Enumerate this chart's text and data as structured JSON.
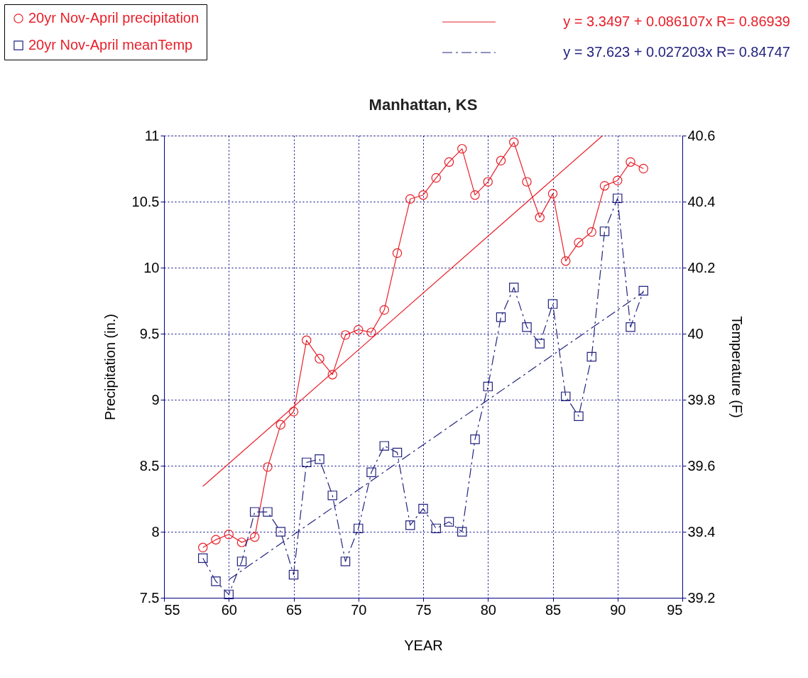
{
  "chart_data": {
    "type": "line",
    "title": "Manhattan, KS",
    "xlabel": "YEAR",
    "ylabel": "Precipitation (in.)",
    "y2label": "Temperature (F)",
    "x": [
      58,
      59,
      60,
      61,
      62,
      63,
      64,
      65,
      66,
      67,
      68,
      69,
      70,
      71,
      72,
      73,
      74,
      75,
      76,
      77,
      78,
      79,
      80,
      81,
      82,
      83,
      84,
      85,
      86,
      87,
      88,
      89,
      90,
      91,
      92
    ],
    "series": [
      {
        "name": "20yr Nov-April precipitation",
        "color": "#e8202a",
        "marker": "circle",
        "line_style": "solid",
        "values": [
          7.88,
          7.94,
          7.98,
          7.92,
          7.96,
          8.49,
          8.81,
          8.91,
          9.45,
          9.31,
          9.19,
          9.49,
          9.53,
          9.51,
          9.68,
          10.11,
          10.52,
          10.55,
          10.68,
          10.8,
          10.9,
          10.55,
          10.65,
          10.81,
          10.95,
          10.65,
          10.38,
          10.56,
          10.05,
          10.19,
          10.27,
          10.62,
          10.66,
          10.8,
          10.75
        ]
      },
      {
        "name": "20yr Nov-April meanTemp",
        "color": "#23237f",
        "marker": "square",
        "line_style": "dashed",
        "axis": "y2",
        "values": [
          39.32,
          39.25,
          39.21,
          39.31,
          39.46,
          39.46,
          39.4,
          39.27,
          39.61,
          39.62,
          39.51,
          39.31,
          39.41,
          39.58,
          39.66,
          39.64,
          39.42,
          39.47,
          39.41,
          39.43,
          39.4,
          39.68,
          39.84,
          40.05,
          40.14,
          40.02,
          39.97,
          40.09,
          39.81,
          39.75,
          39.93,
          40.31,
          40.41,
          40.02,
          40.13
        ]
      },
      {
        "type": "line",
        "color": "#e8202a",
        "marker": "none",
        "line_style": "solid",
        "x": [
          58,
          88.85
        ],
        "values": [
          8.344,
          11.0
        ]
      },
      {
        "type": "line",
        "color": "#23237f",
        "marker": "none",
        "line_style": "dashed",
        "axis": "y2",
        "x": [
          60,
          92
        ],
        "values": [
          39.255,
          40.126
        ]
      }
    ],
    "annotations": [
      "y = 3.3497 + 0.086107x   R= 0.86939",
      "y = 37.623 + 0.027203x   R= 0.84747"
    ],
    "xlim": [
      55,
      95
    ],
    "xticks": [
      55,
      60,
      65,
      70,
      75,
      80,
      85,
      90,
      95
    ],
    "ylim": [
      7.5,
      11
    ],
    "yticks": [
      7.5,
      8,
      8.5,
      9,
      9.5,
      10,
      10.5,
      11
    ],
    "y2lim": [
      39.2,
      40.6
    ],
    "y2ticks": [
      39.2,
      39.4,
      39.6,
      39.8,
      40,
      40.2,
      40.4,
      40.6
    ],
    "grid": true,
    "legend": "top left"
  }
}
